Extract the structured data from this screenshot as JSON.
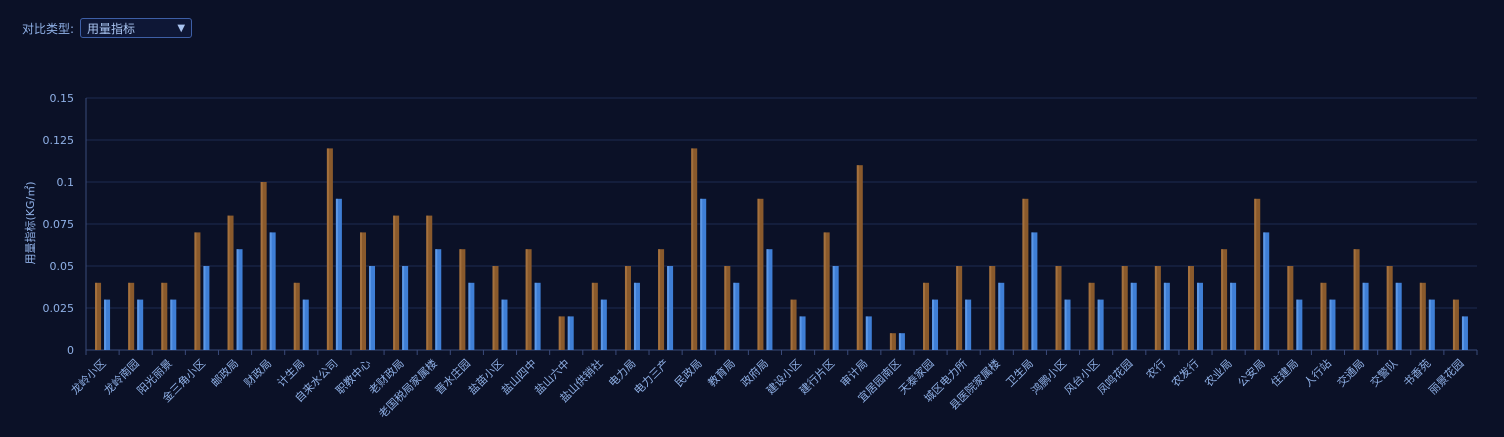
{
  "filter": {
    "label": "对比类型:",
    "value": "用量指标"
  },
  "chart_data": {
    "type": "bar",
    "ylabel": "用量指标(KG/㎡)",
    "ylim": [
      0,
      0.15
    ],
    "yticks": [
      "0",
      "0.025",
      "0.05",
      "0.075",
      "0.1",
      "0.125",
      "0.15"
    ],
    "categories": [
      "龙岭小区",
      "龙岭南园",
      "阳光丽景",
      "金三角小区",
      "邮政局",
      "财政局",
      "计生局",
      "自来水公司",
      "职教中心",
      "老财政局",
      "老国税局家属楼",
      "晋水庄园",
      "盐苗小区",
      "盐山四中",
      "盐山六中",
      "盐山供销社",
      "电力局",
      "电力三产",
      "民政局",
      "教育局",
      "政府局",
      "建设小区",
      "建行片区",
      "审计局",
      "宜居园南区",
      "天泰家园",
      "城区电力所",
      "县医院家属楼",
      "卫生局",
      "鸿鹏小区",
      "风台小区",
      "凤鸣花园",
      "农行",
      "农发行",
      "农业局",
      "公安局",
      "住建局",
      "人行站",
      "交通局",
      "交警队",
      "书香苑",
      "丽景花园"
    ],
    "series": [
      {
        "values": [
          0.04,
          0.04,
          0.04,
          0.07,
          0.08,
          0.1,
          0.04,
          0.12,
          0.07,
          0.08,
          0.08,
          0.06,
          0.05,
          0.06,
          0.02,
          0.04,
          0.05,
          0.06,
          0.12,
          0.05,
          0.09,
          0.03,
          0.07,
          0.11,
          0.01,
          0.04,
          0.05,
          0.05,
          0.09,
          0.05,
          0.04,
          0.05,
          0.05,
          0.05,
          0.06,
          0.09,
          0.05,
          0.04,
          0.06,
          0.05,
          0.04,
          0.03
        ]
      },
      {
        "values": [
          0.03,
          0.03,
          0.03,
          0.05,
          0.06,
          0.07,
          0.03,
          0.09,
          0.05,
          0.05,
          0.06,
          0.04,
          0.03,
          0.04,
          0.02,
          0.03,
          0.04,
          0.05,
          0.09,
          0.04,
          0.06,
          0.02,
          0.05,
          0.02,
          0.01,
          0.03,
          0.03,
          0.04,
          0.07,
          0.03,
          0.03,
          0.04,
          0.04,
          0.04,
          0.04,
          0.07,
          0.03,
          0.03,
          0.04,
          0.04,
          0.03,
          0.02
        ]
      }
    ],
    "colors": {
      "series0": "#8a5a2c",
      "series1": "#3f7fd6",
      "grid": "#1e2a52",
      "axis": "#3a4a7a",
      "text": "#8fb0e6"
    },
    "grid": true
  }
}
